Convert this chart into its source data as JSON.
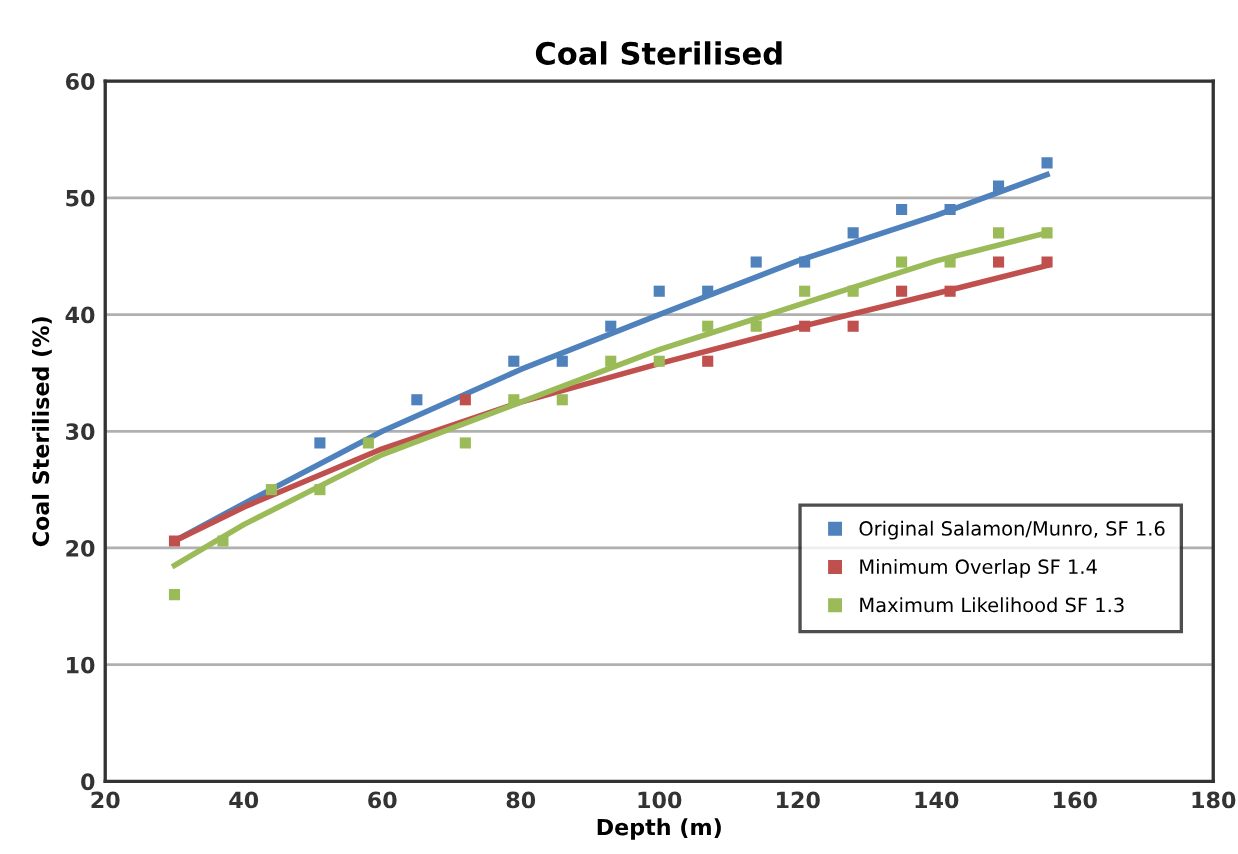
{
  "chart_data": {
    "type": "scatter",
    "title": "Coal Sterilised",
    "xlabel": "Depth (m)",
    "ylabel": "Coal Sterilised (%)",
    "xlim": [
      20,
      180
    ],
    "xticks": [
      20,
      40,
      60,
      80,
      100,
      120,
      140,
      160,
      180
    ],
    "ylim": [
      0,
      60
    ],
    "yticks": [
      0,
      10,
      20,
      30,
      40,
      50,
      60
    ],
    "grid": "y",
    "legend": "right",
    "marker": "square",
    "series": [
      {
        "name": "Original Salamon/Munro, SF 1.6",
        "color": "#4f81bd",
        "x": [
          51,
          65,
          79,
          86,
          93,
          100,
          107,
          114,
          121,
          128,
          135,
          142,
          149,
          156
        ],
        "values": [
          29,
          32.7,
          36,
          36,
          39,
          42,
          42,
          44.5,
          44.5,
          47,
          49,
          49,
          51,
          53
        ]
      },
      {
        "name": "Minimum Overlap SF 1.4",
        "color": "#c0504d",
        "x": [
          30,
          72,
          107,
          121,
          128,
          135,
          142,
          149,
          156
        ],
        "values": [
          20.6,
          32.7,
          36,
          39,
          39,
          42,
          42,
          44.5,
          44.5
        ]
      },
      {
        "name": "Maximum Likelihood SF 1.3",
        "color": "#9bbb59",
        "x": [
          30,
          37,
          44,
          51,
          58,
          72,
          79,
          86,
          93,
          100,
          107,
          114,
          121,
          128,
          135,
          142,
          149,
          156
        ],
        "values": [
          16,
          20.6,
          25,
          25,
          29,
          29,
          32.7,
          32.7,
          36,
          36,
          39,
          39,
          42,
          42,
          44.5,
          44.5,
          47,
          47
        ]
      },
      {
        "type": "line",
        "marker": "none",
        "color": "#4f81bd",
        "x": [
          30,
          40,
          60,
          80,
          100,
          120,
          140,
          156
        ],
        "values": [
          20.6,
          23.8,
          30,
          35.3,
          40,
          44.6,
          48.5,
          52
        ]
      },
      {
        "type": "line",
        "marker": "none",
        "color": "#c0504d",
        "x": [
          30,
          40,
          60,
          80,
          100,
          120,
          140,
          156
        ],
        "values": [
          20.6,
          23.5,
          28.5,
          32.5,
          35.8,
          38.9,
          41.8,
          44.2
        ]
      },
      {
        "type": "line",
        "marker": "none",
        "color": "#9bbb59",
        "x": [
          30,
          40,
          60,
          80,
          100,
          120,
          140,
          156
        ],
        "values": [
          18.5,
          22,
          28,
          32.5,
          37,
          40.8,
          44.6,
          47
        ]
      }
    ]
  }
}
